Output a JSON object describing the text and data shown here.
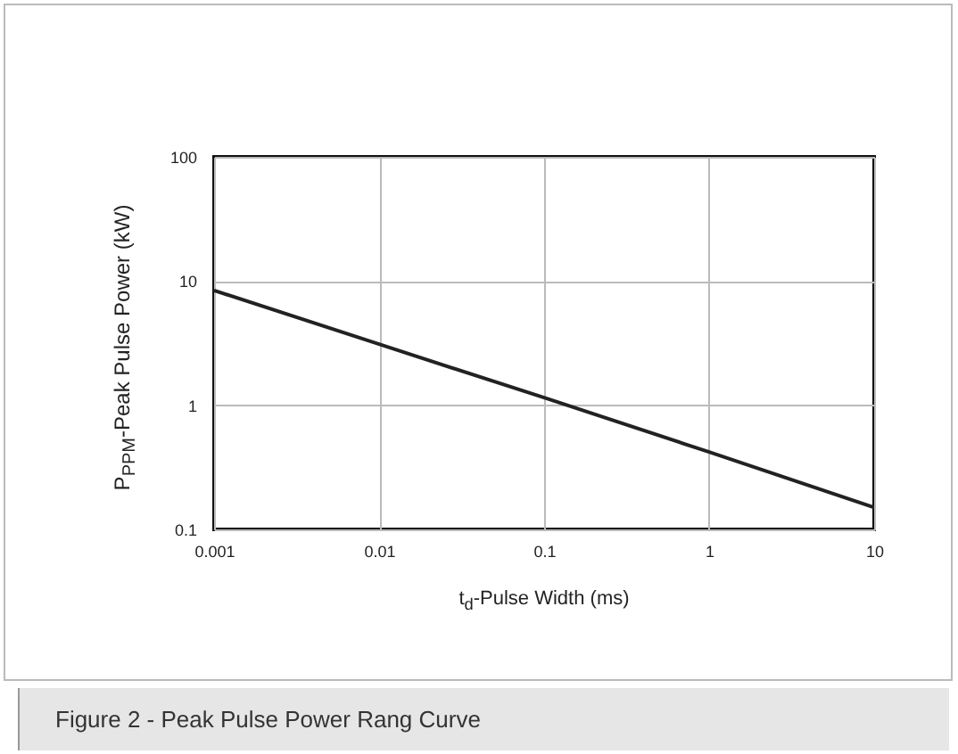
{
  "chart_data": {
    "type": "line",
    "xlabel": "t$_{d}$-Pulse Width (ms)",
    "ylabel": "P$_{PPM}$-Peak Pulse Power (kW)",
    "annotations": [
      "Figure 2 - Peak Pulse Power Rang Curve"
    ],
    "x": [
      0.001,
      0.01,
      0.1,
      1,
      10
    ],
    "series": [
      {
        "color": "#222222",
        "values": [
          8.4,
          3.1,
          1.15,
          0.42,
          0.15
        ]
      }
    ],
    "log": "xy",
    "xlim": [
      0.001,
      10
    ],
    "ylim": [
      0.1,
      100
    ],
    "xticks": [
      0.001,
      0.01,
      0.1,
      1,
      10
    ],
    "yticks": [
      0.1,
      1,
      10,
      100
    ],
    "grid": true,
    "line_style": "solid"
  }
}
